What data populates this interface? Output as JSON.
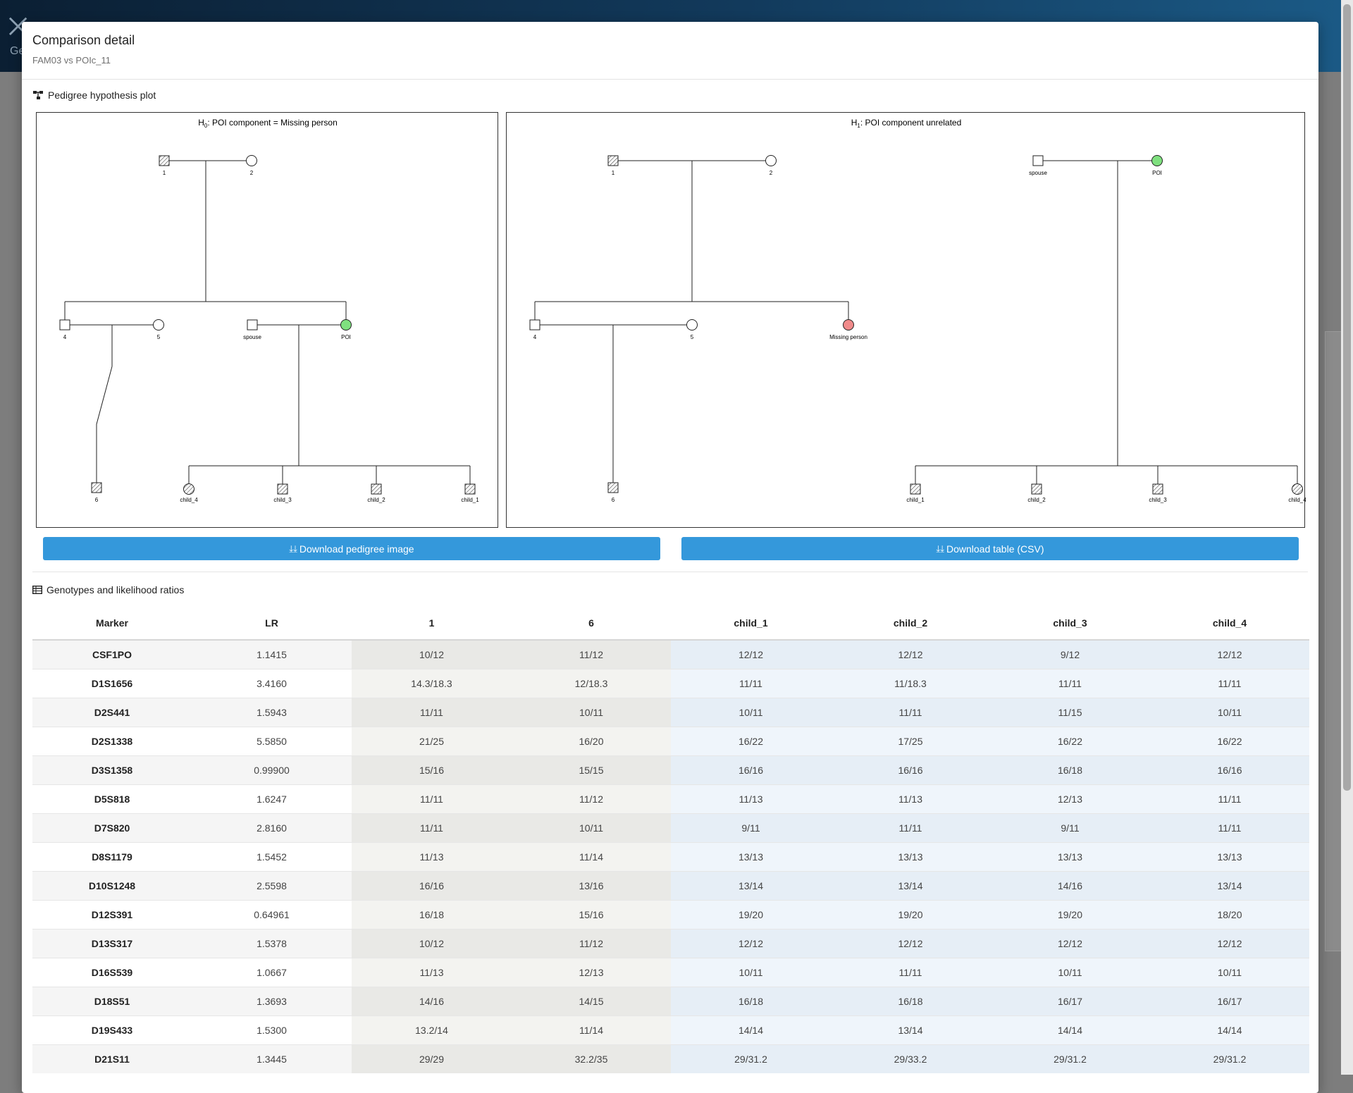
{
  "app": {
    "logo_icon": "dna-icon",
    "logo_text": "Ge"
  },
  "modal": {
    "title": "Comparison detail",
    "subtitle": "FAM03 vs POIc_11"
  },
  "pedigree_section": {
    "title": "Pedigree hypothesis plot",
    "icon": "pedigree-icon"
  },
  "h0": {
    "title_main": "H",
    "title_sub": "0",
    "title_rest": ": POI component = Missing person",
    "labels": {
      "p1": "1",
      "p2": "2",
      "p4": "4",
      "p5": "5",
      "spouse": "spouse",
      "poi": "POI",
      "p6": "6",
      "child4": "child_4",
      "child3": "child_3",
      "child2": "child_2",
      "child1": "child_1"
    }
  },
  "h1": {
    "title_main": "H",
    "title_sub": "1",
    "title_rest": ": POI component unrelated",
    "labels": {
      "p1": "1",
      "p2": "2",
      "p4": "4",
      "p5": "5",
      "missing": "Missing person",
      "p6": "6",
      "spouse": "spouse",
      "poi": "POI",
      "child1": "child_1",
      "child2": "child_2",
      "child3": "child_3",
      "child4": "child_4"
    }
  },
  "colors": {
    "poi": "#7fe07f",
    "missing_person": "#f08a8a",
    "button": "#3498db"
  },
  "buttons": {
    "download_image": {
      "icon": "download-icon",
      "label": "Download pedigree image"
    },
    "download_csv": {
      "icon": "download-icon",
      "label": "Download table (CSV)"
    }
  },
  "table_section": {
    "title": "Genotypes and likelihood ratios",
    "icon": "table-icon"
  },
  "table": {
    "headers": [
      "Marker",
      "LR",
      "1",
      "6",
      "child_1",
      "child_2",
      "child_3",
      "child_4"
    ],
    "rows": [
      [
        "CSF1PO",
        "1.1415",
        "10/12",
        "11/12",
        "12/12",
        "12/12",
        "9/12",
        "12/12"
      ],
      [
        "D1S1656",
        "3.4160",
        "14.3/18.3",
        "12/18.3",
        "11/11",
        "11/18.3",
        "11/11",
        "11/11"
      ],
      [
        "D2S441",
        "1.5943",
        "11/11",
        "10/11",
        "10/11",
        "11/11",
        "11/15",
        "10/11"
      ],
      [
        "D2S1338",
        "5.5850",
        "21/25",
        "16/20",
        "16/22",
        "17/25",
        "16/22",
        "16/22"
      ],
      [
        "D3S1358",
        "0.99900",
        "15/16",
        "15/15",
        "16/16",
        "16/16",
        "16/18",
        "16/16"
      ],
      [
        "D5S818",
        "1.6247",
        "11/11",
        "11/12",
        "11/13",
        "11/13",
        "12/13",
        "11/11"
      ],
      [
        "D7S820",
        "2.8160",
        "11/11",
        "10/11",
        "9/11",
        "11/11",
        "9/11",
        "11/11"
      ],
      [
        "D8S1179",
        "1.5452",
        "11/13",
        "11/14",
        "13/13",
        "13/13",
        "13/13",
        "13/13"
      ],
      [
        "D10S1248",
        "2.5598",
        "16/16",
        "13/16",
        "13/14",
        "13/14",
        "14/16",
        "13/14"
      ],
      [
        "D12S391",
        "0.64961",
        "16/18",
        "15/16",
        "19/20",
        "19/20",
        "19/20",
        "18/20"
      ],
      [
        "D13S317",
        "1.5378",
        "10/12",
        "11/12",
        "12/12",
        "12/12",
        "12/12",
        "12/12"
      ],
      [
        "D16S539",
        "1.0667",
        "11/13",
        "12/13",
        "10/11",
        "11/11",
        "10/11",
        "10/11"
      ],
      [
        "D18S51",
        "1.3693",
        "14/16",
        "14/15",
        "16/18",
        "16/18",
        "16/17",
        "16/17"
      ],
      [
        "D19S433",
        "1.5300",
        "13.2/14",
        "11/14",
        "14/14",
        "13/14",
        "14/14",
        "14/14"
      ],
      [
        "D21S11",
        "1.3445",
        "29/29",
        "32.2/35",
        "29/31.2",
        "29/33.2",
        "29/31.2",
        "29/31.2"
      ]
    ]
  }
}
